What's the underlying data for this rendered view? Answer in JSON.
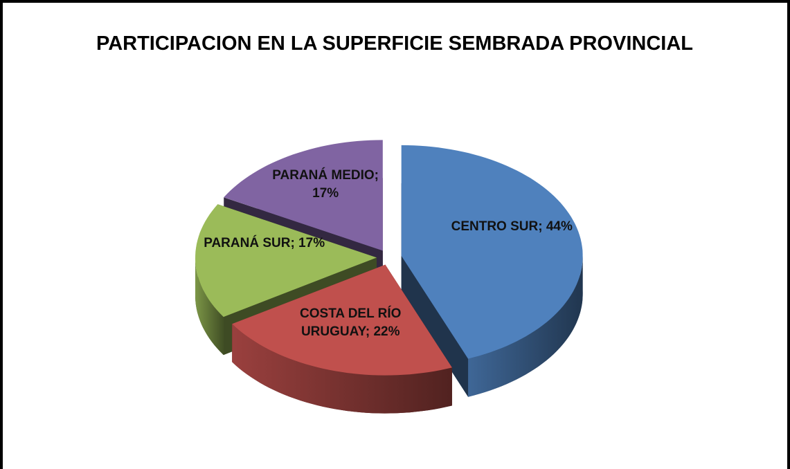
{
  "chart_data": {
    "type": "pie3d",
    "title": "PARTICIPACION EN LA SUPERFICIE SEMBRADA PROVINCIAL",
    "values": [
      44,
      22,
      17,
      17
    ],
    "value_labels": [
      "CENTRO SUR; 44%",
      "COSTA DEL RÍO URUGUAY; 22%",
      "PARANÁ SUR; 17%",
      "PARANÁ MEDIO; 17%"
    ],
    "colors": [
      "#4f81bd",
      "#c0504d",
      "#9bbb59",
      "#8064a2"
    ]
  }
}
